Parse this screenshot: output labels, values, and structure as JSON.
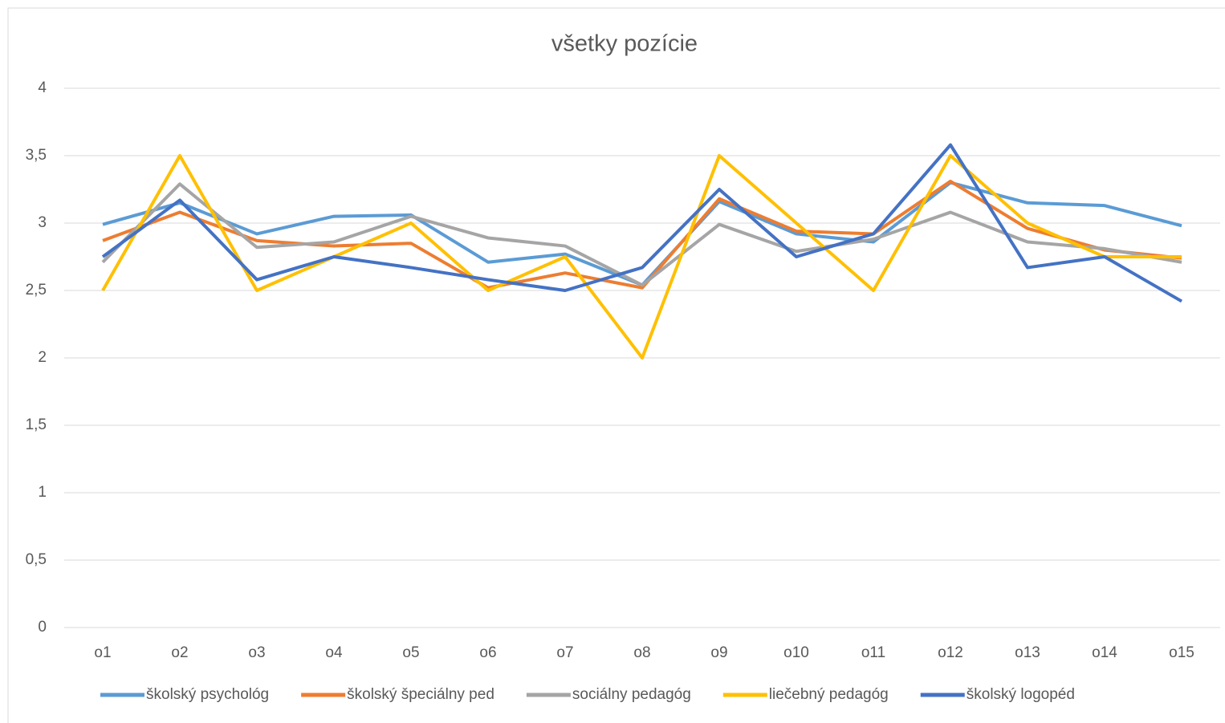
{
  "chart_data": {
    "type": "line",
    "title": "všetky pozície",
    "categories": [
      "o1",
      "o2",
      "o3",
      "o4",
      "o5",
      "o6",
      "o7",
      "o8",
      "o9",
      "o10",
      "o11",
      "o12",
      "o13",
      "o14",
      "o15"
    ],
    "series": [
      {
        "name": "školský psychológ",
        "color": "#5b9bd5",
        "values": [
          2.99,
          3.15,
          2.92,
          3.05,
          3.06,
          2.71,
          2.77,
          2.54,
          3.16,
          2.92,
          2.86,
          3.3,
          3.15,
          3.13,
          2.98
        ]
      },
      {
        "name": "školský špeciálny ped",
        "color": "#ed7d31",
        "values": [
          2.87,
          3.08,
          2.87,
          2.83,
          2.85,
          2.52,
          2.63,
          2.52,
          3.18,
          2.94,
          2.92,
          3.31,
          2.96,
          2.8,
          2.74
        ]
      },
      {
        "name": "sociálny pedagóg",
        "color": "#a5a5a5",
        "values": [
          2.71,
          3.29,
          2.82,
          2.86,
          3.05,
          2.89,
          2.83,
          2.54,
          2.99,
          2.79,
          2.88,
          3.08,
          2.86,
          2.81,
          2.71
        ]
      },
      {
        "name": "liečebný pedagóg",
        "color": "#ffc000",
        "values": [
          2.5,
          3.5,
          2.5,
          2.75,
          3.0,
          2.5,
          2.75,
          2.0,
          3.5,
          3.0,
          2.5,
          3.5,
          3.0,
          2.75,
          2.75
        ]
      },
      {
        "name": "školský logopéd",
        "color": "#4472c4",
        "values": [
          2.75,
          3.17,
          2.58,
          2.75,
          2.67,
          2.58,
          2.5,
          2.67,
          3.25,
          2.75,
          2.92,
          3.58,
          2.67,
          2.75,
          2.42
        ]
      }
    ],
    "ylim": [
      0,
      4
    ],
    "yticks": [
      0,
      {
        "value": 0.5,
        "label": "0,5"
      },
      1,
      {
        "value": 1.5,
        "label": "1,5"
      },
      2,
      {
        "value": 2.5,
        "label": "2,5"
      },
      3,
      {
        "value": 3.5,
        "label": "3,5"
      },
      4
    ],
    "grid": true,
    "legend": "bottom"
  }
}
